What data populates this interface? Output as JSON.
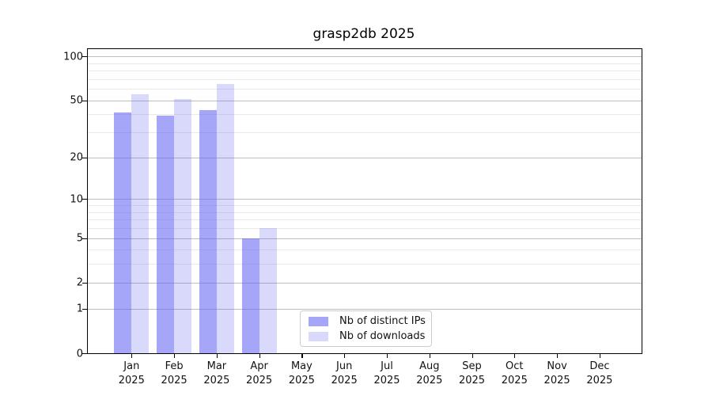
{
  "chart_data": {
    "type": "bar",
    "title": "grasp2db 2025",
    "xlabel": "",
    "ylabel": "",
    "categories": [
      "Jan",
      "Feb",
      "Mar",
      "Apr",
      "May",
      "Jun",
      "Jul",
      "Aug",
      "Sep",
      "Oct",
      "Nov",
      "Dec"
    ],
    "x_tick_second_line": "2025",
    "series": [
      {
        "name": "Nb of distinct IPs",
        "color": "rgba(102,102,243,0.58)",
        "values": [
          41,
          39,
          43,
          5,
          0,
          0,
          0,
          0,
          0,
          0,
          0,
          0
        ]
      },
      {
        "name": "Nb of downloads",
        "color": "rgba(102,102,243,0.25)",
        "values": [
          55,
          51,
          65,
          6,
          0,
          0,
          0,
          0,
          0,
          0,
          0,
          0
        ]
      }
    ],
    "y_axis": {
      "scale": "log1p",
      "ylim": [
        0,
        112
      ],
      "major_ticks": [
        0,
        1,
        2,
        5,
        10,
        20,
        50,
        100
      ],
      "major_tick_labels": [
        "0",
        "1",
        "2",
        "5",
        "10",
        "20",
        "50",
        "100"
      ],
      "minor_ticks": [
        3,
        4,
        6,
        7,
        8,
        9,
        30,
        40,
        60,
        70,
        80,
        90
      ]
    },
    "grid": "on",
    "legend": {
      "position": "inside-bottom-center",
      "entries": [
        "Nb of distinct IPs",
        "Nb of downloads"
      ]
    },
    "colors": {
      "bar_base": "#6666f3",
      "major_grid": "#bdbdbd",
      "minor_grid": "#e9e9e9",
      "axis": "#000000",
      "text": "#111111"
    }
  }
}
